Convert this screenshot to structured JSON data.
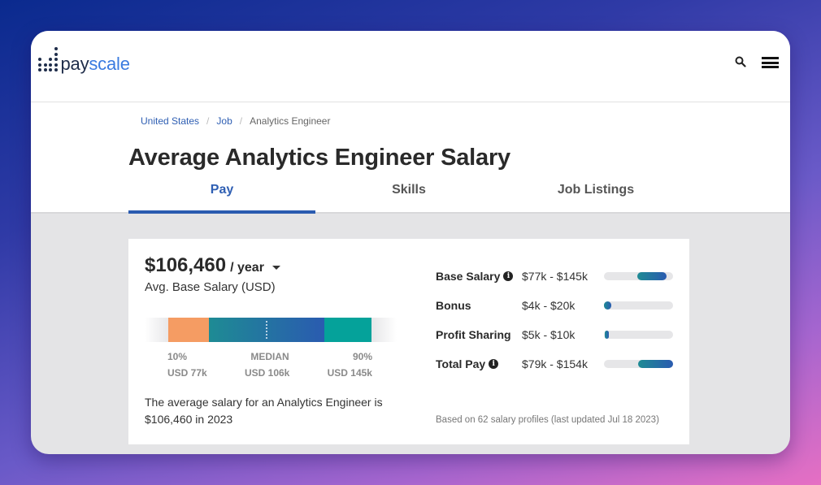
{
  "header": {
    "logo": {
      "part1": "pay",
      "part2": "scale"
    },
    "icons": {
      "search": "search-icon",
      "menu": "hamburger-menu-icon"
    }
  },
  "breadcrumb": [
    {
      "label": "United States",
      "link": true
    },
    {
      "label": "Job",
      "link": true
    },
    {
      "label": "Analytics Engineer",
      "link": false
    }
  ],
  "page_title": "Average Analytics Engineer Salary",
  "tabs": [
    {
      "label": "Pay",
      "active": true
    },
    {
      "label": "Skills",
      "active": false
    },
    {
      "label": "Job Listings",
      "active": false
    }
  ],
  "salary": {
    "amount": "$106,460",
    "period": "/ year",
    "sublabel": "Avg. Base Salary (USD)",
    "percentiles": {
      "p10": {
        "label": "10%",
        "value": "USD 77k"
      },
      "median": {
        "label": "MEDIAN",
        "value": "USD 106k"
      },
      "p90": {
        "label": "90%",
        "value": "USD 145k"
      }
    },
    "description": "The average salary for an Analytics Engineer is $106,460 in 2023"
  },
  "breakdown": [
    {
      "label": "Base Salary",
      "info": true,
      "range": "$77k - $145k",
      "min_k": 77,
      "max_k": 145
    },
    {
      "label": "Bonus",
      "info": false,
      "range": "$4k - $20k",
      "min_k": 4,
      "max_k": 20
    },
    {
      "label": "Profit Sharing",
      "info": false,
      "range": "$5k - $10k",
      "min_k": 5,
      "max_k": 10
    },
    {
      "label": "Total Pay",
      "info": true,
      "range": "$79k - $154k",
      "min_k": 79,
      "max_k": 154
    }
  ],
  "footnote": "Based on 62 salary profiles (last updated Jul 18 2023)",
  "colors": {
    "brand_blue": "#2a5bb0",
    "teal": "#1e8b94",
    "orange": "#f59c63",
    "green_teal": "#05a29a"
  }
}
